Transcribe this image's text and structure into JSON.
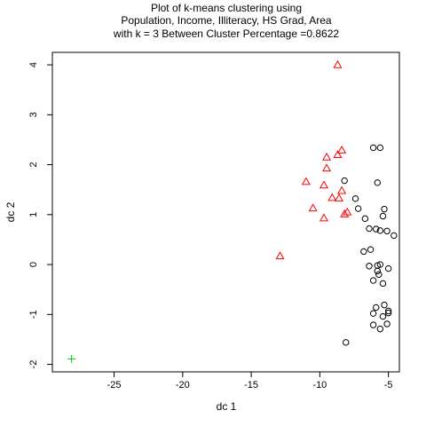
{
  "chart_data": {
    "type": "scatter",
    "title_lines": [
      "Plot of k-means clustering using",
      "Population, Income, Illiteracy, HS Grad, Area",
      "with  k = 3 Between Cluster Percentage =0.8622"
    ],
    "xlabel": "dc 1",
    "ylabel": "dc 2",
    "xlim": [
      -29.5,
      -4.2
    ],
    "ylim": [
      -2.15,
      4.25
    ],
    "xticks": [
      -25,
      -20,
      -15,
      -10,
      -5
    ],
    "yticks": [
      -2,
      -1,
      0,
      1,
      2,
      3,
      4
    ],
    "grid": false,
    "series": [
      {
        "marker": "circle",
        "color": "#000000",
        "points": [
          [
            -6.1,
            2.34
          ],
          [
            -5.6,
            2.34
          ],
          [
            -5.8,
            1.64
          ],
          [
            -8.2,
            1.68
          ],
          [
            -7.4,
            1.32
          ],
          [
            -7.2,
            1.12
          ],
          [
            -5.3,
            1.11
          ],
          [
            -6.7,
            0.92
          ],
          [
            -5.4,
            0.97
          ],
          [
            -6.4,
            0.72
          ],
          [
            -5.9,
            0.71
          ],
          [
            -5.6,
            0.68
          ],
          [
            -5.1,
            0.67
          ],
          [
            -4.6,
            0.58
          ],
          [
            -6.3,
            0.3
          ],
          [
            -6.8,
            0.26
          ],
          [
            -6.4,
            -0.03
          ],
          [
            -5.8,
            -0.02
          ],
          [
            -5.6,
            0.0
          ],
          [
            -5.0,
            -0.08
          ],
          [
            -5.8,
            -0.13
          ],
          [
            -5.7,
            -0.2
          ],
          [
            -6.1,
            -0.32
          ],
          [
            -5.4,
            -0.38
          ],
          [
            -5.3,
            -0.81
          ],
          [
            -5.9,
            -0.86
          ],
          [
            -5.0,
            -0.93
          ],
          [
            -5.0,
            -0.97
          ],
          [
            -6.1,
            -0.98
          ],
          [
            -5.4,
            -1.04
          ],
          [
            -6.1,
            -1.21
          ],
          [
            -5.1,
            -1.19
          ],
          [
            -5.6,
            -1.29
          ],
          [
            -8.1,
            -1.56
          ]
        ]
      },
      {
        "marker": "triangle",
        "color": "#ff0000",
        "points": [
          [
            -8.7,
            4.0
          ],
          [
            -9.5,
            2.15
          ],
          [
            -8.7,
            2.2
          ],
          [
            -8.4,
            2.29
          ],
          [
            -9.5,
            1.93
          ],
          [
            -11.0,
            1.66
          ],
          [
            -9.7,
            1.59
          ],
          [
            -8.4,
            1.48
          ],
          [
            -9.1,
            1.34
          ],
          [
            -8.6,
            1.33
          ],
          [
            -10.5,
            1.13
          ],
          [
            -8.0,
            1.05
          ],
          [
            -8.2,
            1.01
          ],
          [
            -9.7,
            0.93
          ],
          [
            -12.9,
            0.17
          ]
        ]
      },
      {
        "marker": "plus",
        "color": "#00cc00",
        "points": [
          [
            -28.1,
            -1.89
          ]
        ]
      }
    ]
  }
}
